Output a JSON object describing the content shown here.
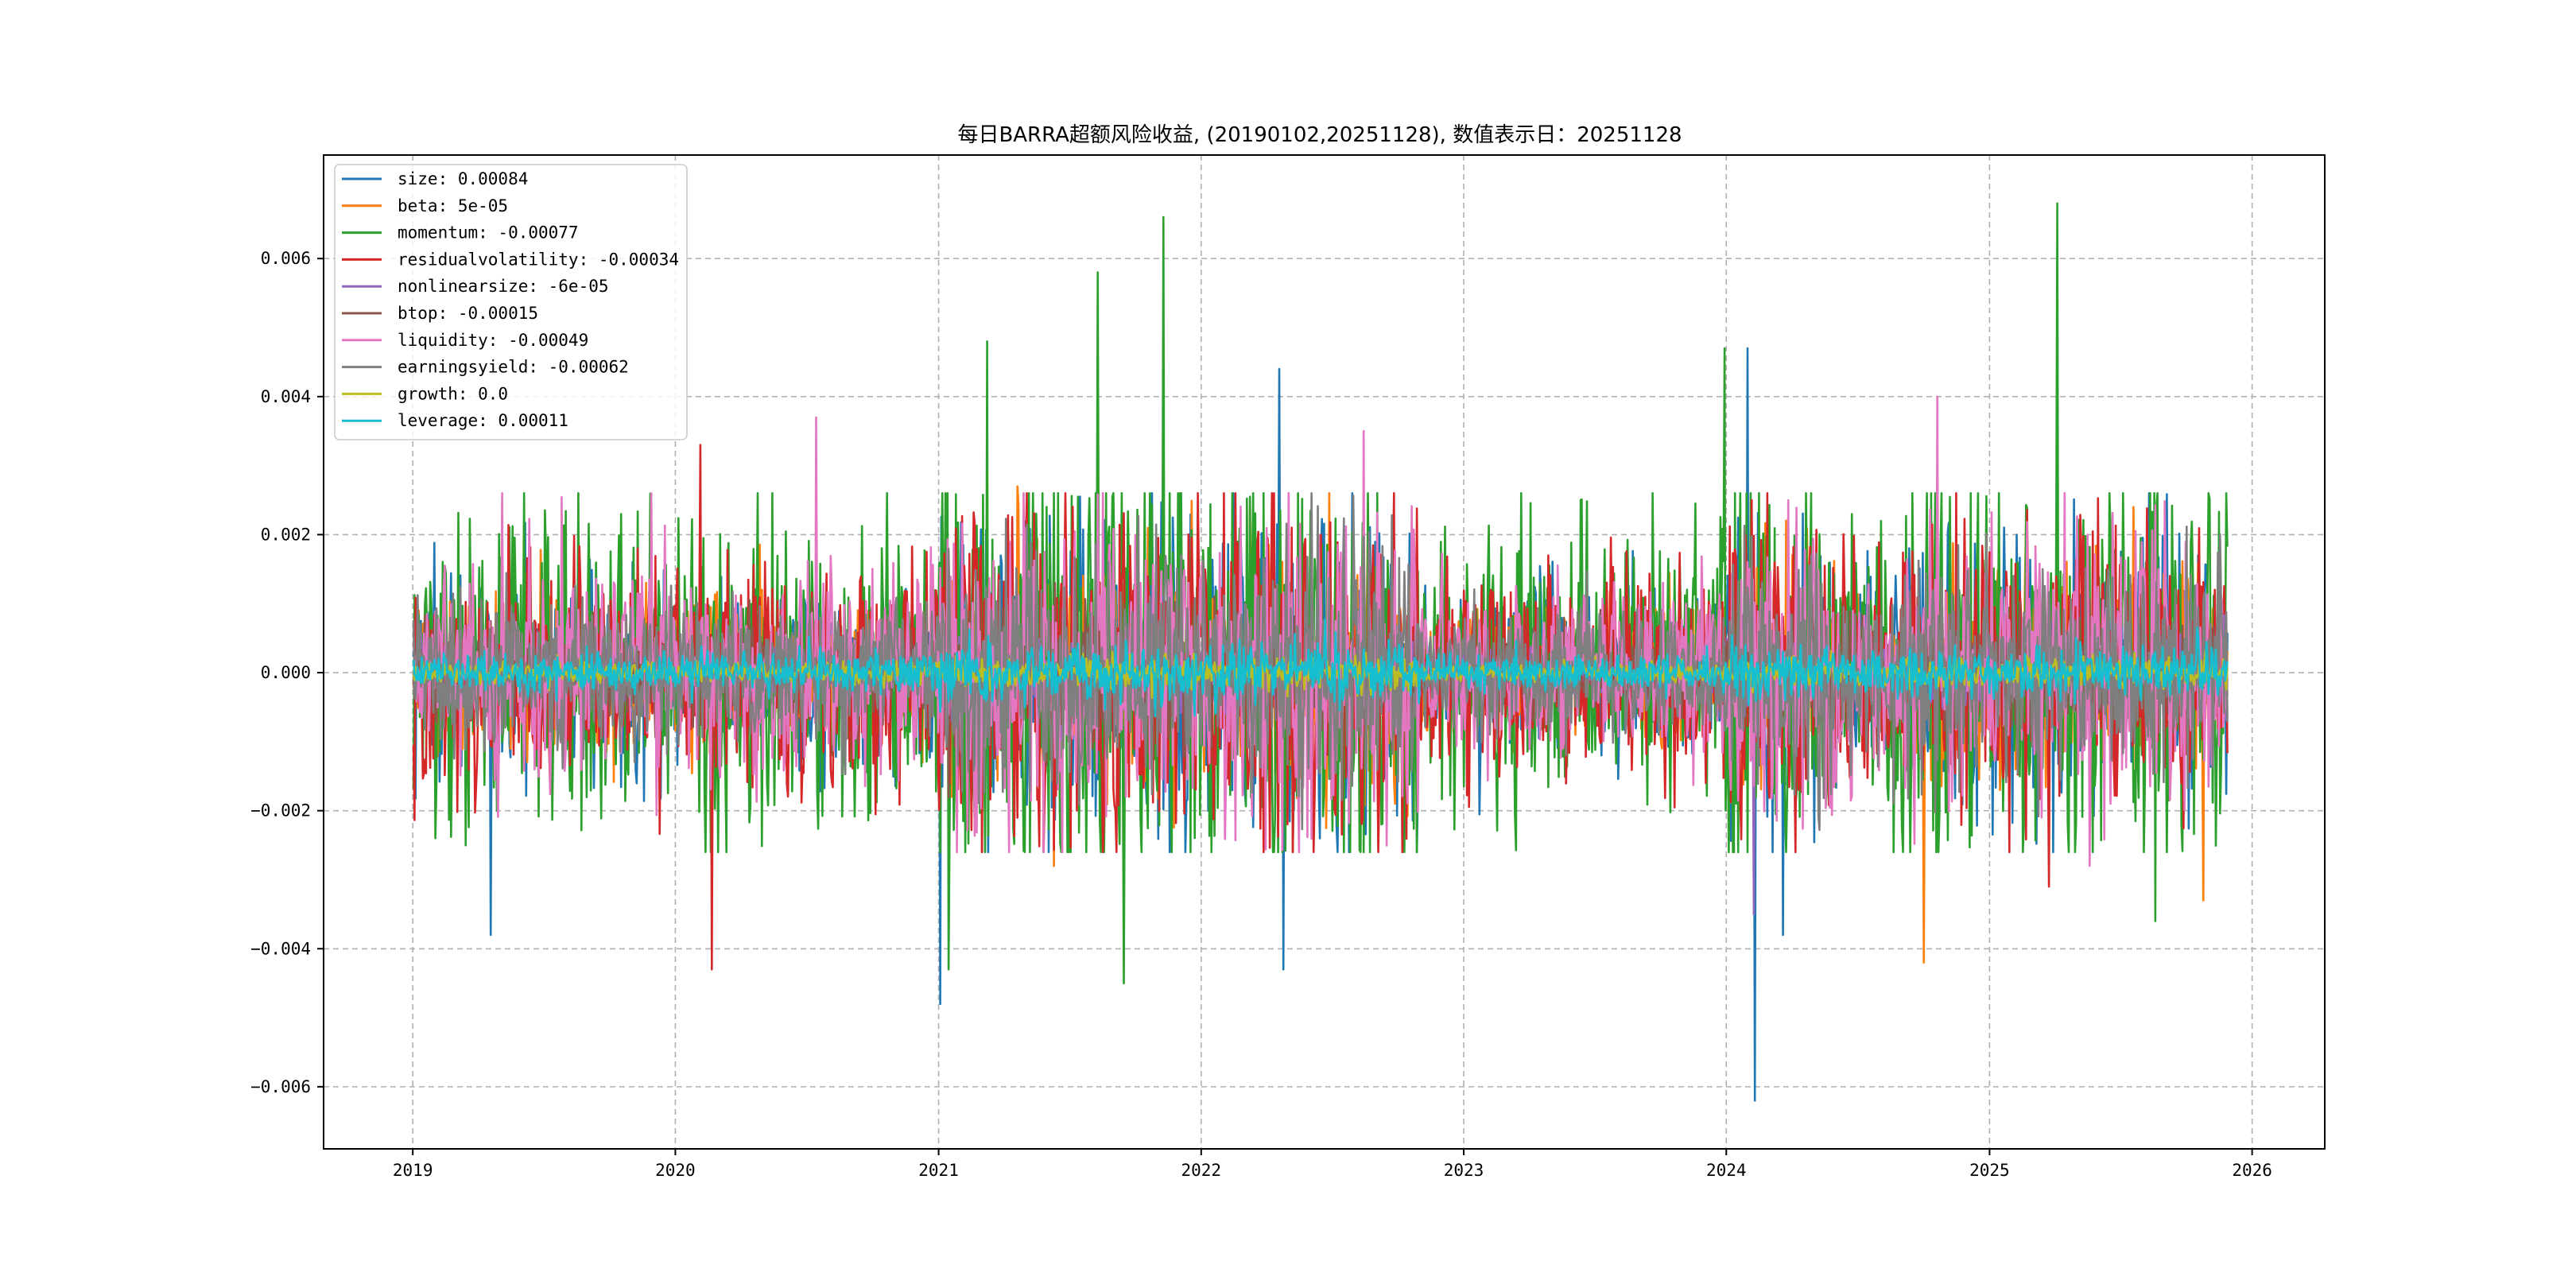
{
  "chart_data": {
    "type": "line",
    "title": "每日BARRA超额风险收益, (20190102,20251128), 数值表示日：20251128",
    "xlabel": "",
    "ylabel": "",
    "x_range": [
      "2018-08-30",
      "2026-04-12"
    ],
    "ylim": [
      -0.0069,
      0.0075
    ],
    "x_ticks": [
      "2019",
      "2020",
      "2021",
      "2022",
      "2023",
      "2024",
      "2025",
      "2026"
    ],
    "y_ticks": [
      -0.006,
      -0.004,
      -0.002,
      0.0,
      0.002,
      0.004,
      0.006
    ],
    "y_tick_labels": [
      "−0.006",
      "−0.004",
      "−0.002",
      "0.000",
      "0.002",
      "0.004",
      "0.006"
    ],
    "grid": true,
    "legend_position": "top-left",
    "date_start": "2019-01-02",
    "date_end": "2025-11-28",
    "series": [
      {
        "name": "size",
        "legend": "size: 0.00084",
        "color": "#1f77b4",
        "amplitude": 0.0009,
        "peaks": [
          {
            "date": "2019-04-20",
            "value": -0.0038
          },
          {
            "date": "2021-01-03",
            "value": -0.0048
          },
          {
            "date": "2022-04-20",
            "value": 0.0044
          },
          {
            "date": "2022-04-25",
            "value": -0.0043
          },
          {
            "date": "2024-01-30",
            "value": 0.0047
          },
          {
            "date": "2024-02-10",
            "value": -0.0062
          },
          {
            "date": "2024-03-20",
            "value": -0.0038
          }
        ]
      },
      {
        "name": "beta",
        "legend": "beta: 5e-05",
        "color": "#ff7f0e",
        "amplitude": 0.0007,
        "peaks": [
          {
            "date": "2021-04-20",
            "value": 0.0027
          },
          {
            "date": "2021-06-10",
            "value": -0.0028
          },
          {
            "date": "2024-10-01",
            "value": -0.0042
          },
          {
            "date": "2025-07-20",
            "value": 0.0024
          },
          {
            "date": "2025-10-25",
            "value": -0.0033
          }
        ]
      },
      {
        "name": "momentum",
        "legend": "momentum: -0.00077",
        "color": "#2ca02c",
        "amplitude": 0.0014,
        "peaks": [
          {
            "date": "2021-01-15",
            "value": -0.0043
          },
          {
            "date": "2021-03-10",
            "value": 0.0048
          },
          {
            "date": "2021-08-10",
            "value": 0.0058
          },
          {
            "date": "2021-09-15",
            "value": -0.0045
          },
          {
            "date": "2021-11-10",
            "value": 0.0066
          },
          {
            "date": "2023-12-30",
            "value": 0.0047
          },
          {
            "date": "2025-04-05",
            "value": 0.0068
          },
          {
            "date": "2025-08-20",
            "value": -0.0036
          }
        ]
      },
      {
        "name": "residualvolatility",
        "legend": "residualvolatility: -0.00034",
        "color": "#d62728",
        "amplitude": 0.001,
        "peaks": [
          {
            "date": "2020-02-05",
            "value": 0.0033
          },
          {
            "date": "2020-02-20",
            "value": -0.0043
          },
          {
            "date": "2024-02-05",
            "value": 0.0025
          },
          {
            "date": "2025-03-25",
            "value": -0.0031
          }
        ]
      },
      {
        "name": "nonlinearsize",
        "legend": "nonlinearsize: -6e-05",
        "color": "#9467bd",
        "amplitude": 0.00025,
        "peaks": [
          {
            "date": "2024-02-08",
            "value": -0.0035
          }
        ]
      },
      {
        "name": "btop",
        "legend": "btop: -0.00015",
        "color": "#8c564b",
        "amplitude": 0.0004,
        "peaks": []
      },
      {
        "name": "liquidity",
        "legend": "liquidity: -0.00049",
        "color": "#e377c2",
        "amplitude": 0.0009,
        "peaks": [
          {
            "date": "2019-05-05",
            "value": 0.0026
          },
          {
            "date": "2020-07-15",
            "value": 0.0037
          },
          {
            "date": "2022-08-15",
            "value": 0.0035
          },
          {
            "date": "2024-10-20",
            "value": 0.004
          },
          {
            "date": "2025-05-20",
            "value": -0.0028
          }
        ]
      },
      {
        "name": "earningsyield",
        "legend": "earningsyield: -0.00062",
        "color": "#7f7f7f",
        "amplitude": 0.0007,
        "peaks": []
      },
      {
        "name": "growth",
        "legend": "growth: 0.0",
        "color": "#bcbd22",
        "amplitude": 0.0001,
        "peaks": []
      },
      {
        "name": "leverage",
        "legend": "leverage: 0.00011",
        "color": "#17becf",
        "amplitude": 0.00018,
        "peaks": []
      }
    ]
  }
}
